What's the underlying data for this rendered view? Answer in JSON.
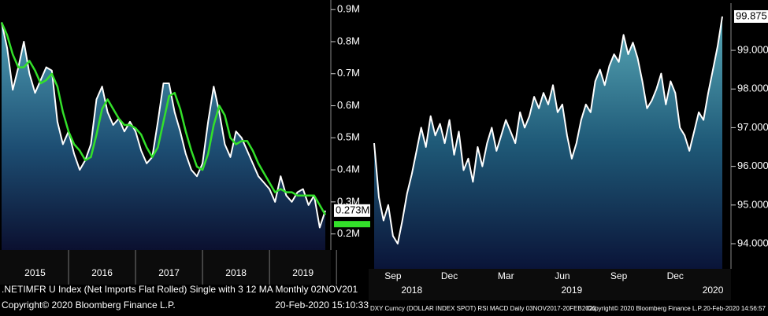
{
  "chart_data": [
    {
      "type": "line",
      "categories": [
        null,
        null,
        null,
        null,
        null,
        null,
        "2015",
        null,
        null,
        null,
        null,
        null,
        null,
        null,
        null,
        null,
        null,
        null,
        "2016",
        null,
        null,
        null,
        null,
        null,
        null,
        null,
        null,
        null,
        null,
        null,
        "2017",
        null,
        null,
        null,
        null,
        null,
        null,
        null,
        null,
        null,
        null,
        null,
        "2018",
        null,
        null,
        null,
        null,
        null,
        null,
        null,
        null,
        null,
        null,
        null,
        "2019",
        null,
        null,
        null,
        null
      ],
      "series": [
        {
          "color": "#ffffff",
          "values": [
            0.86,
            0.78,
            0.65,
            0.72,
            0.8,
            0.7,
            0.64,
            0.68,
            0.72,
            0.71,
            0.55,
            0.48,
            0.52,
            0.45,
            0.4,
            0.43,
            0.48,
            0.62,
            0.66,
            0.58,
            0.54,
            0.56,
            0.52,
            0.55,
            0.52,
            0.46,
            0.42,
            0.44,
            0.55,
            0.67,
            0.67,
            0.58,
            0.52,
            0.45,
            0.4,
            0.38,
            0.42,
            0.55,
            0.66,
            0.58,
            0.48,
            0.44,
            0.52,
            0.5,
            0.46,
            0.42,
            0.38,
            0.36,
            0.34,
            0.3,
            0.38,
            0.32,
            0.3,
            0.33,
            0.34,
            0.29,
            0.32,
            0.22,
            0.273
          ]
        },
        {
          "color": "#33e02a",
          "values": [
            0.86,
            0.82,
            0.76,
            0.72,
            0.72,
            0.74,
            0.71,
            0.67,
            0.68,
            0.7,
            0.66,
            0.58,
            0.52,
            0.48,
            0.46,
            0.43,
            0.44,
            0.51,
            0.59,
            0.62,
            0.59,
            0.56,
            0.54,
            0.54,
            0.53,
            0.51,
            0.47,
            0.44,
            0.47,
            0.55,
            0.63,
            0.64,
            0.59,
            0.52,
            0.46,
            0.41,
            0.4,
            0.45,
            0.54,
            0.6,
            0.57,
            0.5,
            0.48,
            0.49,
            0.49,
            0.46,
            0.42,
            0.39,
            0.36,
            0.33,
            0.34,
            0.33,
            0.33,
            0.32,
            0.32,
            0.32,
            0.32,
            0.29,
            0.26
          ]
        }
      ],
      "last_value_label": "0.273M",
      "ylim": [
        0.15,
        0.93
      ],
      "yticks": [
        {
          "value": 0.2,
          "label": "0.2M"
        },
        {
          "value": 0.3,
          "label": "0.3M"
        },
        {
          "value": 0.4,
          "label": "0.4M"
        },
        {
          "value": 0.5,
          "label": "0.5M"
        },
        {
          "value": 0.6,
          "label": "0.6M"
        },
        {
          "value": 0.7,
          "label": "0.7M"
        },
        {
          "value": 0.8,
          "label": "0.8M"
        },
        {
          "value": 0.9,
          "label": "0.9M"
        }
      ],
      "note": ".NETIMFR U Index (Net Imports Flat Rolled) Single with 3 12 MA  Monthly 02NOV201",
      "copyright": "Copyright© 2020 Bloomberg Finance L.P.",
      "timestamp": "20-Feb-2020 15:10:33"
    },
    {
      "type": "line",
      "categories": [
        null,
        null,
        null,
        null,
        "Sep",
        null,
        null,
        null,
        null,
        null,
        null,
        null,
        null,
        null,
        null,
        null,
        "Dec",
        null,
        null,
        null,
        null,
        null,
        null,
        null,
        null,
        null,
        null,
        null,
        "Mar",
        null,
        null,
        null,
        null,
        null,
        null,
        null,
        null,
        null,
        null,
        null,
        "Jun",
        null,
        null,
        null,
        null,
        null,
        null,
        null,
        null,
        null,
        null,
        null,
        "Sep",
        null,
        null,
        null,
        null,
        null,
        null,
        null,
        null,
        null,
        null,
        null,
        "Dec",
        null,
        null,
        null,
        null,
        null,
        null,
        null,
        null,
        null,
        null
      ],
      "category_groups": [
        null,
        null,
        null,
        null,
        null,
        null,
        null,
        null,
        "2018",
        null,
        null,
        null,
        null,
        null,
        null,
        null,
        null,
        null,
        null,
        null,
        null,
        null,
        null,
        null,
        null,
        null,
        null,
        null,
        null,
        null,
        null,
        null,
        null,
        null,
        null,
        null,
        null,
        null,
        null,
        null,
        null,
        null,
        "2019",
        null,
        null,
        null,
        null,
        null,
        null,
        null,
        null,
        null,
        null,
        null,
        null,
        null,
        null,
        null,
        null,
        null,
        null,
        null,
        null,
        null,
        null,
        null,
        null,
        null,
        null,
        null,
        null,
        null,
        "2020",
        null,
        null
      ],
      "series": [
        {
          "color": "#ffffff",
          "values": [
            96.6,
            95.2,
            94.6,
            95.0,
            94.2,
            94.0,
            94.6,
            95.3,
            95.8,
            96.4,
            97.0,
            96.5,
            97.3,
            96.8,
            97.1,
            96.6,
            97.2,
            96.3,
            96.9,
            95.9,
            96.2,
            95.6,
            96.5,
            96.0,
            96.6,
            97.0,
            96.4,
            96.8,
            97.2,
            96.9,
            96.6,
            97.4,
            97.0,
            97.3,
            97.8,
            97.5,
            97.9,
            97.6,
            98.1,
            97.4,
            97.6,
            96.8,
            96.2,
            96.6,
            97.2,
            97.6,
            97.4,
            98.2,
            98.5,
            98.1,
            98.6,
            98.9,
            98.7,
            99.4,
            98.9,
            99.2,
            98.8,
            98.2,
            97.5,
            97.7,
            98.0,
            98.4,
            97.6,
            98.2,
            97.9,
            97.0,
            96.8,
            96.4,
            96.9,
            97.4,
            97.2,
            97.9,
            98.5,
            99.1,
            99.875
          ]
        }
      ],
      "last_value_label": "99.875",
      "ylim": [
        93.35,
        100.2
      ],
      "yticks": [
        {
          "value": 94,
          "label": "94.000"
        },
        {
          "value": 95,
          "label": "95.000"
        },
        {
          "value": 96,
          "label": "96.000"
        },
        {
          "value": 97,
          "label": "97.000"
        },
        {
          "value": 98,
          "label": "98.000"
        },
        {
          "value": 99,
          "label": "99.000"
        }
      ],
      "note": "DXY Curncy (DOLLAR INDEX SPOT) RSI MACD  Daily 03NOV2017-20FEB2020",
      "copyright": "Copyright© 2020 Bloomberg Finance L.P.",
      "timestamp": "20-Feb-2020 14:56:57"
    }
  ]
}
